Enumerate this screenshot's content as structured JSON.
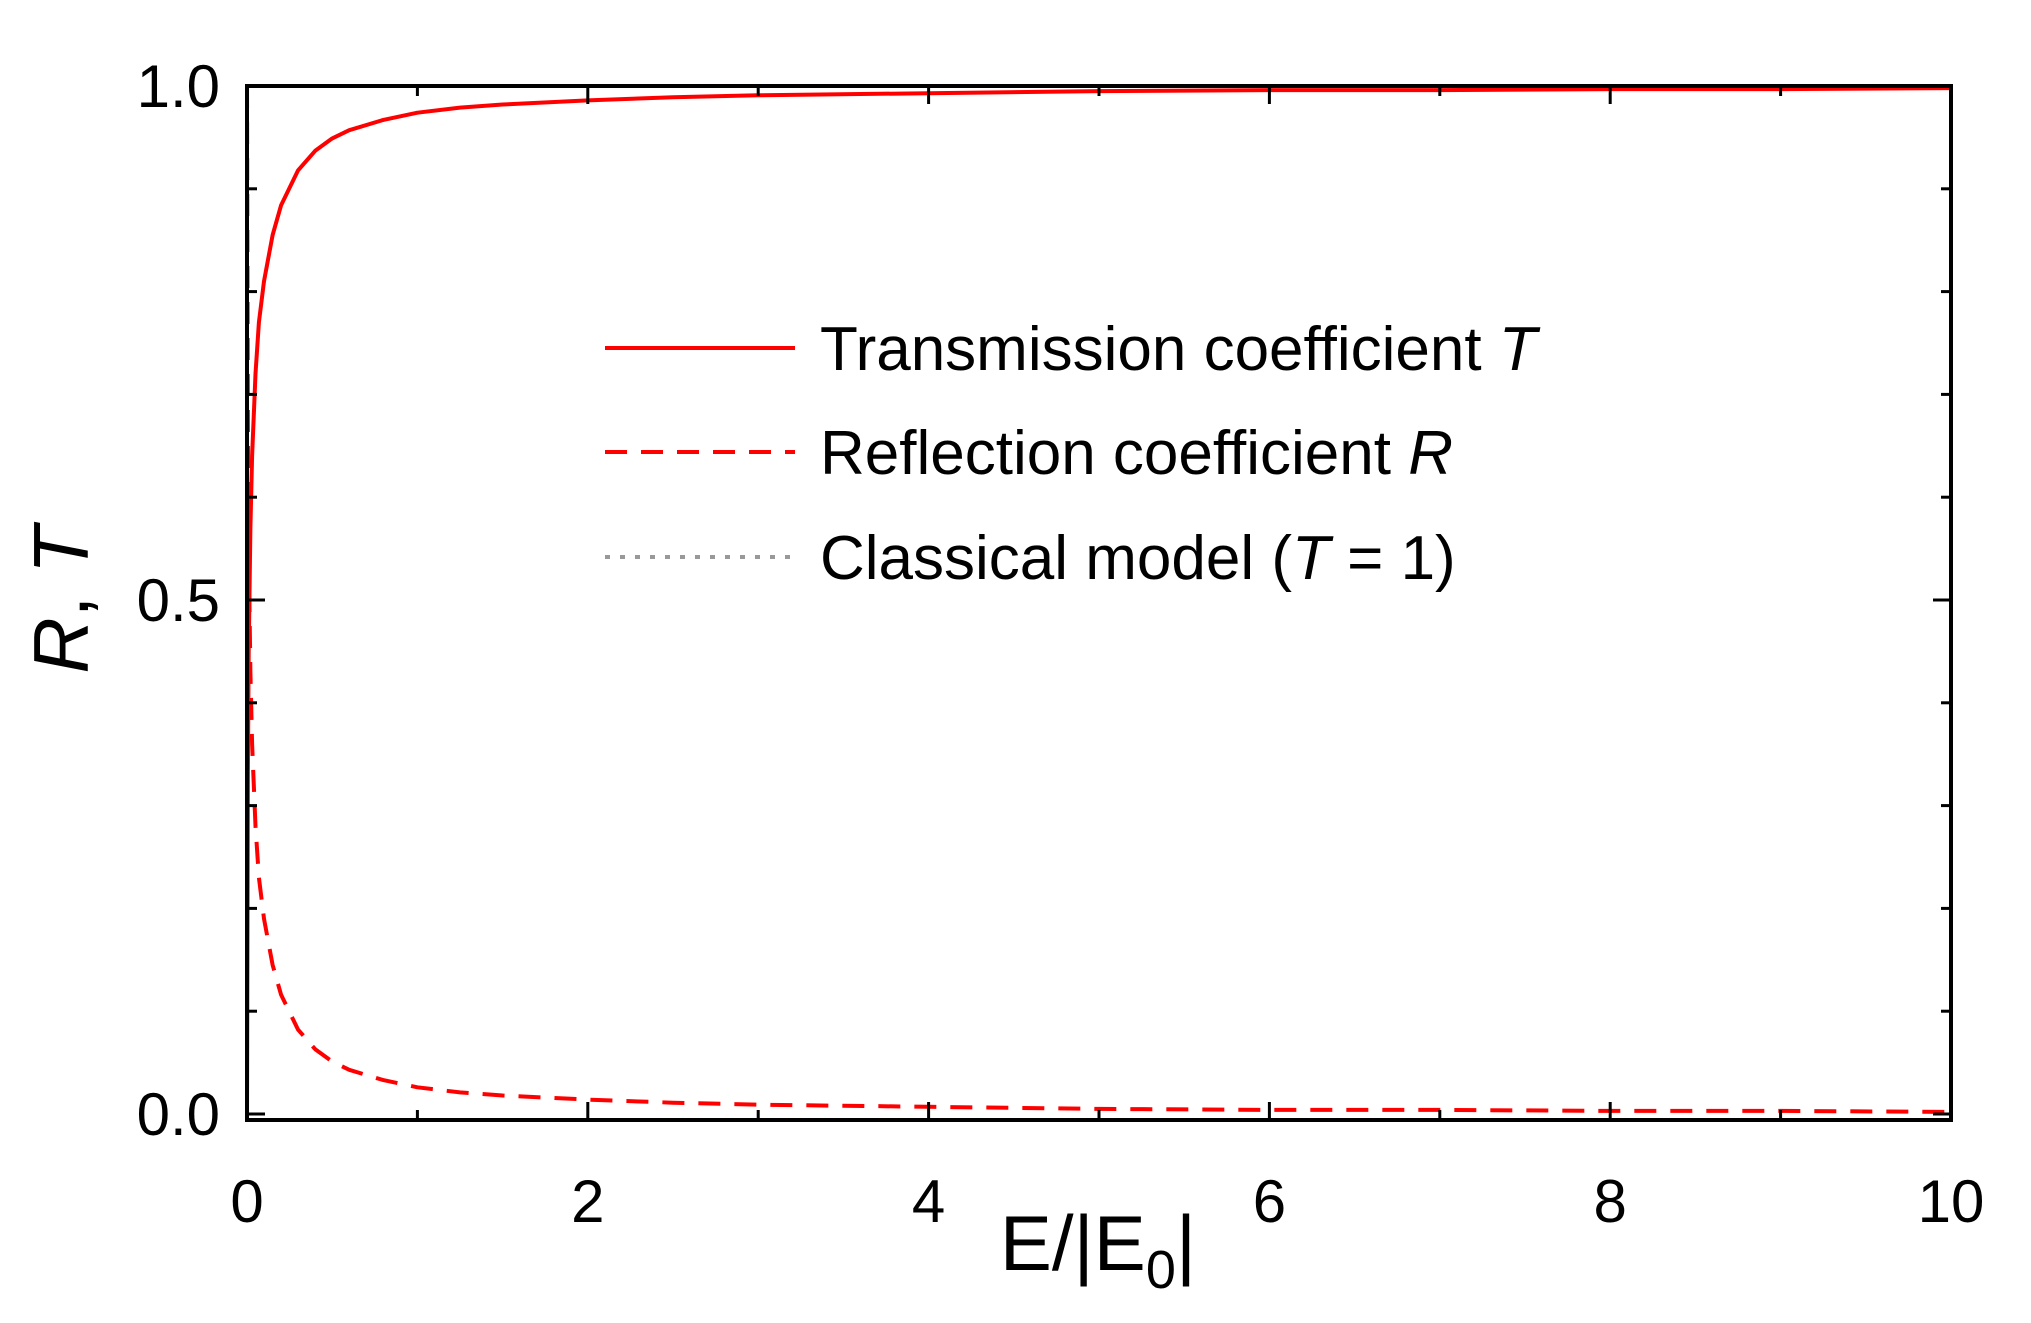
{
  "chart_data": {
    "type": "line",
    "title": "",
    "xlabel": {
      "base": "E/|E",
      "sub": "0",
      "close": "|"
    },
    "ylabel": {
      "italic1": "R",
      "sep": ", ",
      "italic2": "T"
    },
    "xlim": [
      0,
      10
    ],
    "ylim": [
      0,
      1.0
    ],
    "x_ticks": [
      0,
      2,
      4,
      6,
      8,
      10
    ],
    "x_tick_labels": [
      "0",
      "2",
      "4",
      "6",
      "8",
      "10"
    ],
    "y_ticks": [
      0.0,
      0.5,
      1.0
    ],
    "y_tick_labels": [
      "0.0",
      "0.5",
      "1.0"
    ],
    "grid": false,
    "legend_position": "center-right",
    "series": [
      {
        "id": "T",
        "name": "Transmission coefficient",
        "name_italic": "T",
        "color": "#ff0000",
        "style": "solid",
        "x": [
          0,
          0.005,
          0.01,
          0.02,
          0.03,
          0.05,
          0.07,
          0.1,
          0.15,
          0.2,
          0.3,
          0.4,
          0.5,
          0.6,
          0.8,
          1.0,
          1.25,
          1.5,
          2.0,
          2.5,
          3.0,
          4.0,
          5.0,
          6.0,
          7.0,
          8.0,
          9.0,
          10.0
        ],
        "values": [
          0.0,
          0.33,
          0.45,
          0.57,
          0.64,
          0.72,
          0.77,
          0.81,
          0.855,
          0.884,
          0.918,
          0.937,
          0.949,
          0.957,
          0.967,
          0.974,
          0.979,
          0.982,
          0.986,
          0.989,
          0.991,
          0.993,
          0.995,
          0.996,
          0.996,
          0.997,
          0.997,
          0.998
        ]
      },
      {
        "id": "R",
        "name": "Reflection coefficient",
        "name_italic": "R",
        "color": "#ff0000",
        "style": "dashed",
        "x": [
          0,
          0.005,
          0.01,
          0.02,
          0.03,
          0.05,
          0.07,
          0.1,
          0.15,
          0.2,
          0.3,
          0.4,
          0.5,
          0.6,
          0.8,
          1.0,
          1.25,
          1.5,
          2.0,
          2.5,
          3.0,
          4.0,
          5.0,
          6.0,
          7.0,
          8.0,
          9.0,
          10.0
        ],
        "values": [
          1.0,
          0.67,
          0.55,
          0.43,
          0.36,
          0.28,
          0.23,
          0.19,
          0.145,
          0.116,
          0.082,
          0.063,
          0.051,
          0.043,
          0.033,
          0.026,
          0.021,
          0.018,
          0.014,
          0.011,
          0.009,
          0.007,
          0.005,
          0.004,
          0.004,
          0.003,
          0.003,
          0.002
        ]
      },
      {
        "id": "classical",
        "name": "Classical model (",
        "name_italic": "T",
        "name_suffix": " = 1)",
        "color": "#999999",
        "style": "dotted",
        "x": [
          0,
          10
        ],
        "values": [
          1.0,
          1.0
        ]
      }
    ]
  }
}
